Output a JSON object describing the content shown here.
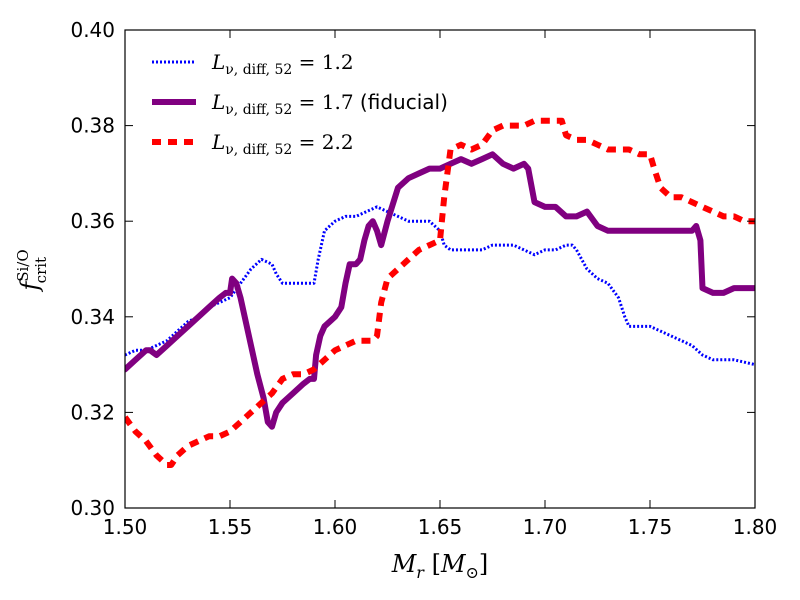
{
  "chart_data": {
    "type": "line",
    "xlabel": "M_r [M_⊙]",
    "ylabel": "f_crit^Si/O",
    "xlim": [
      1.5,
      1.8
    ],
    "ylim": [
      0.3,
      0.4
    ],
    "xticks": [
      "1.50",
      "1.55",
      "1.60",
      "1.65",
      "1.70",
      "1.75",
      "1.80"
    ],
    "yticks": [
      "0.30",
      "0.32",
      "0.34",
      "0.36",
      "0.38",
      "0.40"
    ],
    "legend_position": "top-left",
    "series": [
      {
        "name": "L_{ν,diff,52} = 1.2",
        "legend_main": "L",
        "legend_sub": "ν, diff, 52",
        "legend_eq": " = 1.2",
        "color": "#0000ff",
        "style": "dotted",
        "x": [
          1.5,
          1.505,
          1.51,
          1.515,
          1.52,
          1.525,
          1.53,
          1.535,
          1.54,
          1.545,
          1.55,
          1.555,
          1.56,
          1.565,
          1.57,
          1.572,
          1.575,
          1.58,
          1.585,
          1.59,
          1.592,
          1.595,
          1.6,
          1.605,
          1.61,
          1.615,
          1.62,
          1.625,
          1.63,
          1.635,
          1.64,
          1.645,
          1.65,
          1.652,
          1.655,
          1.66,
          1.665,
          1.67,
          1.675,
          1.68,
          1.685,
          1.69,
          1.695,
          1.7,
          1.705,
          1.71,
          1.713,
          1.715,
          1.72,
          1.725,
          1.73,
          1.735,
          1.738,
          1.74,
          1.745,
          1.75,
          1.755,
          1.76,
          1.765,
          1.77,
          1.775,
          1.78,
          1.79,
          1.8
        ],
        "y": [
          0.332,
          0.333,
          0.333,
          0.334,
          0.335,
          0.337,
          0.339,
          0.34,
          0.342,
          0.343,
          0.344,
          0.347,
          0.35,
          0.352,
          0.351,
          0.349,
          0.347,
          0.347,
          0.347,
          0.347,
          0.352,
          0.358,
          0.36,
          0.361,
          0.361,
          0.362,
          0.363,
          0.362,
          0.361,
          0.36,
          0.36,
          0.36,
          0.358,
          0.355,
          0.354,
          0.354,
          0.354,
          0.354,
          0.355,
          0.355,
          0.355,
          0.354,
          0.353,
          0.354,
          0.354,
          0.355,
          0.355,
          0.354,
          0.35,
          0.348,
          0.347,
          0.344,
          0.34,
          0.338,
          0.338,
          0.338,
          0.337,
          0.336,
          0.335,
          0.334,
          0.332,
          0.331,
          0.331,
          0.33
        ]
      },
      {
        "name": "L_{ν,diff,52} = 1.7 (fiducial)",
        "legend_main": "L",
        "legend_sub": "ν, diff, 52",
        "legend_eq": " = 1.7",
        "legend_suffix": " (fiducial)",
        "color": "#800080",
        "style": "solid",
        "x": [
          1.5,
          1.505,
          1.51,
          1.512,
          1.515,
          1.52,
          1.525,
          1.53,
          1.535,
          1.54,
          1.545,
          1.548,
          1.55,
          1.551,
          1.553,
          1.555,
          1.56,
          1.563,
          1.566,
          1.568,
          1.57,
          1.572,
          1.575,
          1.58,
          1.585,
          1.588,
          1.59,
          1.591,
          1.593,
          1.595,
          1.6,
          1.603,
          1.605,
          1.607,
          1.61,
          1.612,
          1.614,
          1.616,
          1.618,
          1.62,
          1.622,
          1.625,
          1.63,
          1.635,
          1.64,
          1.645,
          1.65,
          1.655,
          1.66,
          1.665,
          1.67,
          1.675,
          1.68,
          1.685,
          1.69,
          1.692,
          1.695,
          1.7,
          1.705,
          1.71,
          1.715,
          1.72,
          1.725,
          1.73,
          1.74,
          1.75,
          1.76,
          1.765,
          1.77,
          1.772,
          1.774,
          1.775,
          1.78,
          1.785,
          1.79,
          1.795,
          1.8
        ],
        "y": [
          0.329,
          0.331,
          0.333,
          0.333,
          0.332,
          0.334,
          0.336,
          0.338,
          0.34,
          0.342,
          0.344,
          0.345,
          0.345,
          0.348,
          0.347,
          0.344,
          0.334,
          0.328,
          0.323,
          0.318,
          0.317,
          0.32,
          0.322,
          0.324,
          0.326,
          0.327,
          0.327,
          0.332,
          0.336,
          0.338,
          0.34,
          0.342,
          0.347,
          0.351,
          0.351,
          0.352,
          0.356,
          0.359,
          0.36,
          0.358,
          0.355,
          0.36,
          0.367,
          0.369,
          0.37,
          0.371,
          0.371,
          0.372,
          0.373,
          0.372,
          0.373,
          0.374,
          0.372,
          0.371,
          0.372,
          0.371,
          0.364,
          0.363,
          0.363,
          0.361,
          0.361,
          0.362,
          0.359,
          0.358,
          0.358,
          0.358,
          0.358,
          0.358,
          0.358,
          0.359,
          0.356,
          0.346,
          0.345,
          0.345,
          0.346,
          0.346,
          0.346
        ]
      },
      {
        "name": "L_{ν,diff,52} = 2.2",
        "legend_main": "L",
        "legend_sub": "ν, diff, 52",
        "legend_eq": " = 2.2",
        "color": "#ff0000",
        "style": "dashed",
        "x": [
          1.5,
          1.505,
          1.51,
          1.515,
          1.52,
          1.522,
          1.525,
          1.53,
          1.535,
          1.54,
          1.545,
          1.55,
          1.555,
          1.56,
          1.565,
          1.57,
          1.575,
          1.58,
          1.585,
          1.59,
          1.595,
          1.6,
          1.605,
          1.61,
          1.615,
          1.618,
          1.62,
          1.622,
          1.625,
          1.63,
          1.635,
          1.64,
          1.645,
          1.65,
          1.652,
          1.655,
          1.66,
          1.665,
          1.67,
          1.675,
          1.68,
          1.685,
          1.69,
          1.695,
          1.7,
          1.705,
          1.708,
          1.71,
          1.715,
          1.72,
          1.725,
          1.73,
          1.735,
          1.74,
          1.745,
          1.75,
          1.752,
          1.755,
          1.76,
          1.765,
          1.77,
          1.775,
          1.78,
          1.785,
          1.79,
          1.795,
          1.8
        ],
        "y": [
          0.319,
          0.316,
          0.314,
          0.311,
          0.309,
          0.309,
          0.311,
          0.313,
          0.314,
          0.315,
          0.315,
          0.316,
          0.318,
          0.32,
          0.322,
          0.324,
          0.327,
          0.328,
          0.328,
          0.329,
          0.331,
          0.333,
          0.334,
          0.335,
          0.335,
          0.335,
          0.336,
          0.343,
          0.348,
          0.35,
          0.352,
          0.354,
          0.355,
          0.356,
          0.365,
          0.375,
          0.376,
          0.375,
          0.376,
          0.379,
          0.38,
          0.38,
          0.38,
          0.381,
          0.381,
          0.381,
          0.381,
          0.378,
          0.377,
          0.377,
          0.376,
          0.375,
          0.375,
          0.375,
          0.374,
          0.374,
          0.371,
          0.367,
          0.365,
          0.365,
          0.364,
          0.363,
          0.362,
          0.361,
          0.361,
          0.36,
          0.36
        ]
      }
    ]
  }
}
